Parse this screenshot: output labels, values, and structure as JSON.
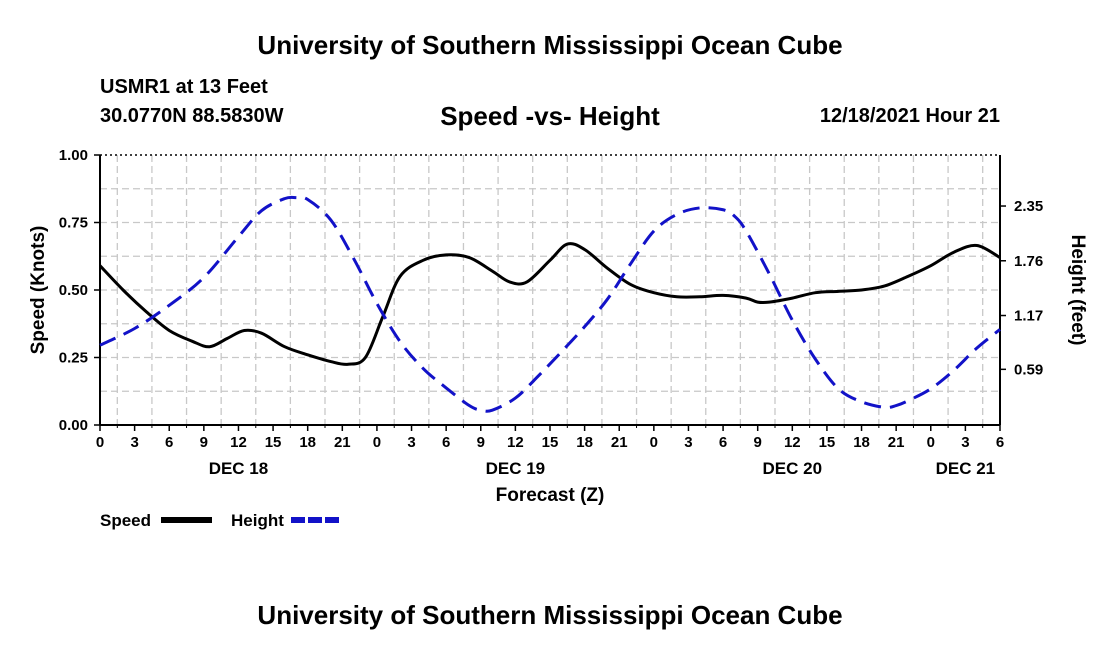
{
  "page": {
    "title_top": "University of Southern Mississippi Ocean Cube",
    "title_bottom": "University of Southern Mississippi Ocean Cube",
    "station": "USMR1 at 13 Feet",
    "coordinates": "30.0770N  88.5830W",
    "date": "12/18/2021 Hour 21"
  },
  "chart_data": {
    "type": "line",
    "title": "Speed -vs- Height",
    "xlabel": "Forecast (Z)",
    "ylabel": "Speed (Knots)",
    "y2label": "Height (feet)",
    "x_unit": "hours since 12/18 00Z",
    "xlim": [
      0,
      78
    ],
    "ylim": [
      0,
      1.0
    ],
    "y2lim": [
      -0.01,
      2.9
    ],
    "x_ticks": [
      0,
      3,
      6,
      9,
      12,
      15,
      18,
      21,
      24,
      27,
      30,
      33,
      36,
      39,
      42,
      45,
      48,
      51,
      54,
      57,
      60,
      63,
      66,
      69,
      72,
      75,
      78
    ],
    "x_tick_labels": [
      "0",
      "3",
      "6",
      "9",
      "12",
      "15",
      "18",
      "21",
      "0",
      "3",
      "6",
      "9",
      "12",
      "15",
      "18",
      "21",
      "0",
      "3",
      "6",
      "9",
      "12",
      "15",
      "18",
      "21",
      "0",
      "3",
      "6"
    ],
    "y_ticks": [
      0,
      0.25,
      0.5,
      0.75,
      1.0
    ],
    "y_tick_labels": [
      "0.00",
      "0.25",
      "0.50",
      "0.75",
      "1.00"
    ],
    "y2_ticks": [
      0.59,
      1.17,
      1.76,
      2.35
    ],
    "y2_tick_labels": [
      "0.59",
      "1.17",
      "1.76",
      "2.35"
    ],
    "day_labels": [
      {
        "x": 12,
        "label": "DEC 18"
      },
      {
        "x": 36,
        "label": "DEC 19"
      },
      {
        "x": 60,
        "label": "DEC 20"
      },
      {
        "x": 75,
        "label": "DEC 21"
      }
    ],
    "legend": [
      {
        "name": "Speed",
        "color": "#000000",
        "dash": "solid"
      },
      {
        "name": "Height",
        "color": "#1212c8",
        "dash": "dashed"
      }
    ],
    "series": [
      {
        "name": "Speed",
        "axis": "left",
        "color": "#000000",
        "x": [
          0,
          2,
          4,
          6,
          8,
          9.5,
          11,
          12.5,
          14,
          16,
          18,
          20,
          21.5,
          23,
          24.5,
          26,
          28,
          30,
          32,
          34,
          35.5,
          37,
          39,
          40.5,
          42,
          44,
          46,
          48,
          50,
          52,
          54,
          56,
          57,
          58,
          60,
          62,
          64,
          66,
          68,
          70,
          72,
          74,
          76,
          78
        ],
        "y": [
          0.59,
          0.5,
          0.42,
          0.35,
          0.31,
          0.29,
          0.32,
          0.35,
          0.34,
          0.29,
          0.26,
          0.235,
          0.225,
          0.25,
          0.4,
          0.55,
          0.61,
          0.63,
          0.62,
          0.57,
          0.53,
          0.53,
          0.61,
          0.67,
          0.65,
          0.58,
          0.52,
          0.49,
          0.475,
          0.475,
          0.48,
          0.47,
          0.455,
          0.455,
          0.47,
          0.49,
          0.495,
          0.5,
          0.515,
          0.55,
          0.59,
          0.64,
          0.665,
          0.62
        ]
      },
      {
        "name": "Height",
        "axis": "right",
        "color": "#1212c8",
        "x": [
          0,
          3,
          6,
          9,
          12,
          14,
          16,
          17,
          18,
          20,
          22,
          24,
          26,
          28,
          30,
          32,
          33,
          34,
          36,
          38,
          40,
          42,
          44,
          46,
          48,
          50,
          52,
          54,
          55,
          56,
          58,
          60,
          62,
          64,
          66,
          68,
          69,
          70,
          72,
          74,
          76,
          78
        ],
        "y": [
          0.85,
          1.03,
          1.28,
          1.58,
          2.02,
          2.3,
          2.43,
          2.44,
          2.42,
          2.2,
          1.78,
          1.3,
          0.89,
          0.6,
          0.39,
          0.2,
          0.15,
          0.15,
          0.28,
          0.52,
          0.78,
          1.05,
          1.35,
          1.73,
          2.08,
          2.26,
          2.33,
          2.31,
          2.24,
          2.08,
          1.62,
          1.12,
          0.7,
          0.38,
          0.24,
          0.18,
          0.2,
          0.25,
          0.38,
          0.58,
          0.82,
          1.02
        ]
      }
    ]
  }
}
